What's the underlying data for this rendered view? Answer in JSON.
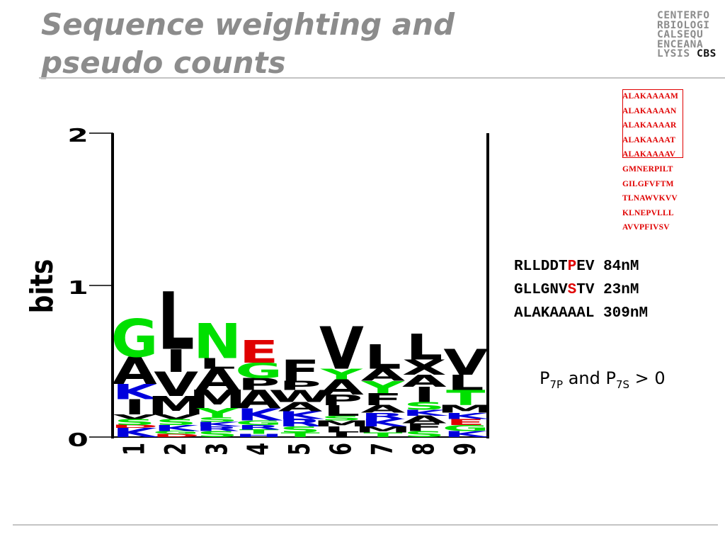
{
  "slide": {
    "title": "Sequence weighting and pseudo counts",
    "logo_lines": [
      "CENTERFO",
      "RBIOLOGI",
      "CALSEQU",
      "ENCEANA"
    ],
    "logo_last_prefix": "LYSIS ",
    "logo_last_suffix": "CBS"
  },
  "alignment": {
    "sequences": [
      "ALAKAAAAM",
      "ALAKAAAAN",
      "ALAKAAAAR",
      "ALAKAAAAT",
      "ALAKAAAAV",
      "GMNERPILT",
      "GILGFVFTM",
      "TLNAWVKVV",
      "KLNEPVLLL",
      "AVVPFIVSV"
    ]
  },
  "peptides": [
    {
      "pre": "RLLDDT",
      "hl": "P",
      "post": "EV",
      "value": "84nM"
    },
    {
      "pre": "GLLGNV",
      "hl": "S",
      "post": "TV",
      "value": "23nM"
    },
    {
      "pre": "ALAKAAAAL",
      "hl": "",
      "post": "",
      "value": "309nM"
    }
  ],
  "formula": {
    "p": "P",
    "s1": "7P",
    "mid": " and P",
    "s2": "7S",
    "end": " > 0"
  },
  "colors": {
    "G": "#00e000",
    "S": "#00e000",
    "T": "#00e000",
    "Y": "#00e000",
    "C": "#00e000",
    "N": "#00e000",
    "Q": "#00e000",
    "K": "#0000dd",
    "R": "#0000dd",
    "H": "#0000dd",
    "D": "#e00000",
    "E": "#e00000",
    "default": "#000000"
  },
  "chart_data": {
    "type": "sequence-logo",
    "ylabel": "bits",
    "yticks": [
      "0",
      "1",
      "2"
    ],
    "ylim": [
      0,
      2
    ],
    "positions": [
      "1",
      "2",
      "3",
      "4",
      "5",
      "6",
      "7",
      "8",
      "9"
    ],
    "columns": [
      [
        [
          "K",
          0.06
        ],
        [
          "D",
          0.02
        ],
        [
          "S",
          0.04
        ],
        [
          "V",
          0.03
        ],
        [
          "I",
          0.1
        ],
        [
          "K",
          0.1
        ],
        [
          "A",
          0.18
        ],
        [
          "G",
          0.25
        ]
      ],
      [
        [
          "D",
          0.02
        ],
        [
          "G",
          0.02
        ],
        [
          "K",
          0.04
        ],
        [
          "S",
          0.04
        ],
        [
          "V",
          0.03
        ],
        [
          "M",
          0.12
        ],
        [
          "V",
          0.16
        ],
        [
          "I",
          0.15
        ],
        [
          "L",
          0.38
        ]
      ],
      [
        [
          "S",
          0.04
        ],
        [
          "R",
          0.03
        ],
        [
          "K",
          0.03
        ],
        [
          "S",
          0.03
        ],
        [
          "Y",
          0.06
        ],
        [
          "M",
          0.12
        ],
        [
          "A",
          0.14
        ],
        [
          "L",
          0.07
        ],
        [
          "N",
          0.23
        ]
      ],
      [
        [
          "H",
          0.02
        ],
        [
          "T",
          0.03
        ],
        [
          "R",
          0.03
        ],
        [
          "G",
          0.03
        ],
        [
          "K",
          0.08
        ],
        [
          "A",
          0.12
        ],
        [
          "P",
          0.08
        ],
        [
          "G",
          0.1
        ],
        [
          "E",
          0.15
        ]
      ],
      [
        [
          "T",
          0.03
        ],
        [
          "S",
          0.04
        ],
        [
          "R",
          0.05
        ],
        [
          "K",
          0.05
        ],
        [
          "A",
          0.06
        ],
        [
          "W",
          0.08
        ],
        [
          "P",
          0.06
        ],
        [
          "F",
          0.14
        ]
      ],
      [
        [
          "I",
          0.03
        ],
        [
          "L",
          0.04
        ],
        [
          "M",
          0.04
        ],
        [
          "S",
          0.03
        ],
        [
          "L",
          0.07
        ],
        [
          "P",
          0.07
        ],
        [
          "A",
          0.1
        ],
        [
          "Y",
          0.07
        ],
        [
          "V",
          0.28
        ]
      ],
      [
        [
          "T",
          0.03
        ],
        [
          "M",
          0.04
        ],
        [
          "K",
          0.05
        ],
        [
          "R",
          0.04
        ],
        [
          "A",
          0.05
        ],
        [
          "F",
          0.08
        ],
        [
          "Y",
          0.08
        ],
        [
          "A",
          0.08
        ],
        [
          "L",
          0.16
        ]
      ],
      [
        [
          "S",
          0.04
        ],
        [
          "F",
          0.05
        ],
        [
          "A",
          0.05
        ],
        [
          "K",
          0.04
        ],
        [
          "S",
          0.05
        ],
        [
          "I",
          0.1
        ],
        [
          "A",
          0.08
        ],
        [
          "X",
          0.1
        ],
        [
          "L",
          0.17
        ]
      ],
      [
        [
          "K",
          0.04
        ],
        [
          "G",
          0.04
        ],
        [
          "E",
          0.04
        ],
        [
          "K",
          0.04
        ],
        [
          "M",
          0.05
        ],
        [
          "T",
          0.1
        ],
        [
          "L",
          0.1
        ],
        [
          "V",
          0.17
        ]
      ]
    ]
  }
}
